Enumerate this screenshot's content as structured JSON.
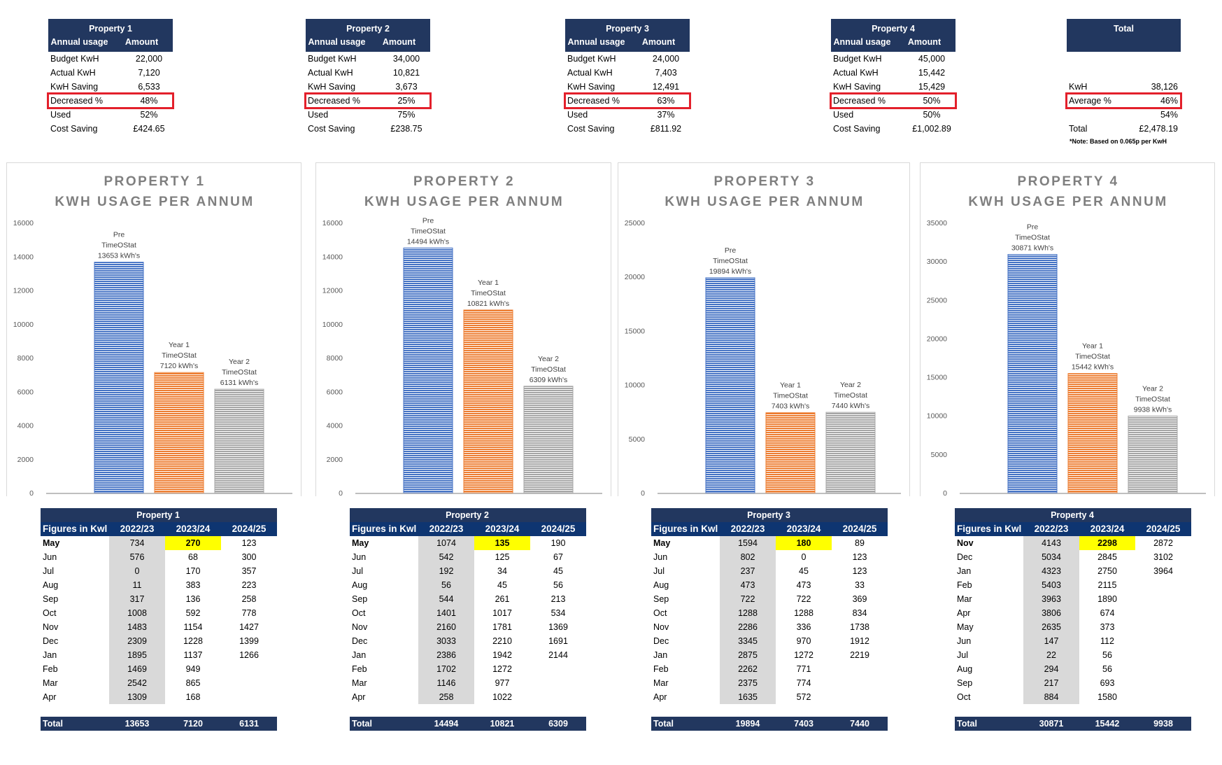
{
  "summaries": [
    {
      "title": "Property 1",
      "col_label": "Annual usage",
      "col_amount": "Amount",
      "rows": [
        {
          "label": "Budget KwH",
          "value": "22,000"
        },
        {
          "label": "Actual KwH",
          "value": "7,120"
        },
        {
          "label": "KwH Saving",
          "value": "6,533"
        },
        {
          "label": "Decreased %",
          "value": "48%",
          "highlight": true
        },
        {
          "label": "Used",
          "value": "52%"
        },
        {
          "label": "Cost Saving",
          "value": "£424.65"
        }
      ]
    },
    {
      "title": "Property 2",
      "col_label": "Annual usage",
      "col_amount": "Amount",
      "rows": [
        {
          "label": "Budget KwH",
          "value": "34,000"
        },
        {
          "label": "Actual KwH",
          "value": "10,821"
        },
        {
          "label": "KwH Saving",
          "value": "3,673"
        },
        {
          "label": "Decreased %",
          "value": "25%",
          "highlight": true
        },
        {
          "label": "Used",
          "value": "75%"
        },
        {
          "label": "Cost Saving",
          "value": "£238.75"
        }
      ]
    },
    {
      "title": "Property 3",
      "col_label": "Annual usage",
      "col_amount": "Amount",
      "rows": [
        {
          "label": "Budget KwH",
          "value": "24,000"
        },
        {
          "label": "Actual KwH",
          "value": "7,403"
        },
        {
          "label": "KwH Saving",
          "value": "12,491"
        },
        {
          "label": "Decreased %",
          "value": "63%",
          "highlight": true
        },
        {
          "label": "Used",
          "value": "37%"
        },
        {
          "label": "Cost Saving",
          "value": "£811.92"
        }
      ]
    },
    {
      "title": "Property 4",
      "col_label": "Annual usage",
      "col_amount": "Amount",
      "rows": [
        {
          "label": "Budget KwH",
          "value": "45,000"
        },
        {
          "label": "Actual KwH",
          "value": "15,442"
        },
        {
          "label": "KwH Saving",
          "value": "15,429"
        },
        {
          "label": "Decreased %",
          "value": "50%",
          "highlight": true
        },
        {
          "label": "Used",
          "value": "50%"
        },
        {
          "label": "Cost Saving",
          "value": "£1,002.89"
        }
      ]
    }
  ],
  "total_summary": {
    "title": "Total",
    "rows": [
      {
        "label": "",
        "value": ""
      },
      {
        "label": "",
        "value": ""
      },
      {
        "label": "KwH",
        "value": "38,126"
      },
      {
        "label": "Average %",
        "value": "46%",
        "highlight": true
      },
      {
        "label": "",
        "value": "54%"
      },
      {
        "label": "Total",
        "value": "£2,478.19"
      }
    ],
    "note": "*Note: Based on 0.065p per KwH"
  },
  "colors": {
    "header": "#22375f",
    "subheader": "#0e3571",
    "highlight_box": "#e3202b",
    "highlight_cell": "#ffff00",
    "pre": "#4472c4",
    "year1": "#ed7d31",
    "year2": "#a5a5a5"
  },
  "chart_data": [
    {
      "type": "bar",
      "title": [
        "PROPERTY 1",
        "KWH USAGE PER ANNUM"
      ],
      "ylim": [
        0,
        16000
      ],
      "yticks": [
        0,
        2000,
        4000,
        6000,
        8000,
        10000,
        12000,
        14000,
        16000
      ],
      "values": [
        13653,
        7120,
        6131
      ],
      "labels": [
        [
          "Pre",
          "TimeOStat",
          "13653 kWh's"
        ],
        [
          "Year 1",
          "TimeOStat",
          "7120 kWh's"
        ],
        [
          "Year 2",
          "TimeOStat",
          "6131 kWh's"
        ]
      ]
    },
    {
      "type": "bar",
      "title": [
        "PROPERTY 2",
        "KWH USAGE PER ANNUM"
      ],
      "ylim": [
        0,
        16000
      ],
      "yticks": [
        0,
        2000,
        4000,
        6000,
        8000,
        10000,
        12000,
        14000,
        16000
      ],
      "values": [
        14494,
        10821,
        6309
      ],
      "labels": [
        [
          "Pre",
          "TimeOStat",
          "14494 kWh's"
        ],
        [
          "Year 1",
          "TimeOStat",
          "10821 kWh's"
        ],
        [
          "Year 2",
          "TimeOStat",
          "6309 kWh's"
        ]
      ]
    },
    {
      "type": "bar",
      "title": [
        "PROPERTY 3",
        "KWH USAGE PER ANNUM"
      ],
      "ylim": [
        0,
        25000
      ],
      "yticks": [
        0,
        5000,
        10000,
        15000,
        20000,
        25000
      ],
      "values": [
        19894,
        7403,
        7440
      ],
      "labels": [
        [
          "Pre",
          "TimeOStat",
          "19894 kWh's"
        ],
        [
          "Year 1",
          "TimeOStat",
          "7403 kWh's"
        ],
        [
          "Year 2",
          "TimeOstat",
          "7440 kWh's"
        ]
      ]
    },
    {
      "type": "bar",
      "title": [
        "PROPERTY 4",
        "KWH USAGE PER ANNUM"
      ],
      "ylim": [
        0,
        35000
      ],
      "yticks": [
        0,
        5000,
        10000,
        15000,
        20000,
        25000,
        30000,
        35000
      ],
      "values": [
        30871,
        15442,
        9938
      ],
      "labels": [
        [
          "Pre",
          "TimeOStat",
          "30871 kWh's"
        ],
        [
          "Year 1",
          "TimeOStat",
          "15442 kWh's"
        ],
        [
          "Year 2",
          "TimeOStat",
          "9938 kWh's"
        ]
      ]
    }
  ],
  "tables": [
    {
      "title": "Property 1",
      "headers": [
        "Figures in Kwl",
        "2022/23",
        "2023/24",
        "2024/25"
      ],
      "rows": [
        [
          "May",
          "734",
          "270",
          "123"
        ],
        [
          "Jun",
          "576",
          "68",
          "300"
        ],
        [
          "Jul",
          "0",
          "170",
          "357"
        ],
        [
          "Aug",
          "11",
          "383",
          "223"
        ],
        [
          "Sep",
          "317",
          "136",
          "258"
        ],
        [
          "Oct",
          "1008",
          "592",
          "778"
        ],
        [
          "Nov",
          "1483",
          "1154",
          "1427"
        ],
        [
          "Dec",
          "2309",
          "1228",
          "1399"
        ],
        [
          "Jan",
          "1895",
          "1137",
          "1266"
        ],
        [
          "Feb",
          "1469",
          "949",
          ""
        ],
        [
          "Mar",
          "2542",
          "865",
          ""
        ],
        [
          "Apr",
          "1309",
          "168",
          ""
        ]
      ],
      "total": [
        "Total",
        "13653",
        "7120",
        "6131"
      ]
    },
    {
      "title": "Property 2",
      "headers": [
        "Figures in Kwl",
        "2022/23",
        "2023/24",
        "2024/25"
      ],
      "rows": [
        [
          "May",
          "1074",
          "135",
          "190"
        ],
        [
          "Jun",
          "542",
          "125",
          "67"
        ],
        [
          "Jul",
          "192",
          "34",
          "45"
        ],
        [
          "Aug",
          "56",
          "45",
          "56"
        ],
        [
          "Sep",
          "544",
          "261",
          "213"
        ],
        [
          "Oct",
          "1401",
          "1017",
          "534"
        ],
        [
          "Nov",
          "2160",
          "1781",
          "1369"
        ],
        [
          "Dec",
          "3033",
          "2210",
          "1691"
        ],
        [
          "Jan",
          "2386",
          "1942",
          "2144"
        ],
        [
          "Feb",
          "1702",
          "1272",
          ""
        ],
        [
          "Mar",
          "1146",
          "977",
          ""
        ],
        [
          "Apr",
          "258",
          "1022",
          ""
        ]
      ],
      "total": [
        "Total",
        "14494",
        "10821",
        "6309"
      ]
    },
    {
      "title": "Property 3",
      "headers": [
        "Figures in Kwl",
        "2022/23",
        "2023/24",
        "2024/25"
      ],
      "rows": [
        [
          "May",
          "1594",
          "180",
          "89"
        ],
        [
          "Jun",
          "802",
          "0",
          "123"
        ],
        [
          "Jul",
          "237",
          "45",
          "123"
        ],
        [
          "Aug",
          "473",
          "473",
          "33"
        ],
        [
          "Sep",
          "722",
          "722",
          "369"
        ],
        [
          "Oct",
          "1288",
          "1288",
          "834"
        ],
        [
          "Nov",
          "2286",
          "336",
          "1738"
        ],
        [
          "Dec",
          "3345",
          "970",
          "1912"
        ],
        [
          "Jan",
          "2875",
          "1272",
          "2219"
        ],
        [
          "Feb",
          "2262",
          "771",
          ""
        ],
        [
          "Mar",
          "2375",
          "774",
          ""
        ],
        [
          "Apr",
          "1635",
          "572",
          ""
        ]
      ],
      "total": [
        "Total",
        "19894",
        "7403",
        "7440"
      ]
    },
    {
      "title": "Property 4",
      "headers": [
        "Figures in Kwl",
        "2022/23",
        "2023/24",
        "2024/25"
      ],
      "rows": [
        [
          "Nov",
          "4143",
          "2298",
          "2872"
        ],
        [
          "Dec",
          "5034",
          "2845",
          "3102"
        ],
        [
          "Jan",
          "4323",
          "2750",
          "3964"
        ],
        [
          "Feb",
          "5403",
          "2115",
          ""
        ],
        [
          "Mar",
          "3963",
          "1890",
          ""
        ],
        [
          "Apr",
          "3806",
          "674",
          ""
        ],
        [
          "May",
          "2635",
          "373",
          ""
        ],
        [
          "Jun",
          "147",
          "112",
          ""
        ],
        [
          "Jul",
          "22",
          "56",
          ""
        ],
        [
          "Aug",
          "294",
          "56",
          ""
        ],
        [
          "Sep",
          "217",
          "693",
          ""
        ],
        [
          "Oct",
          "884",
          "1580",
          ""
        ]
      ],
      "total": [
        "Total",
        "30871",
        "15442",
        "9938"
      ]
    }
  ]
}
